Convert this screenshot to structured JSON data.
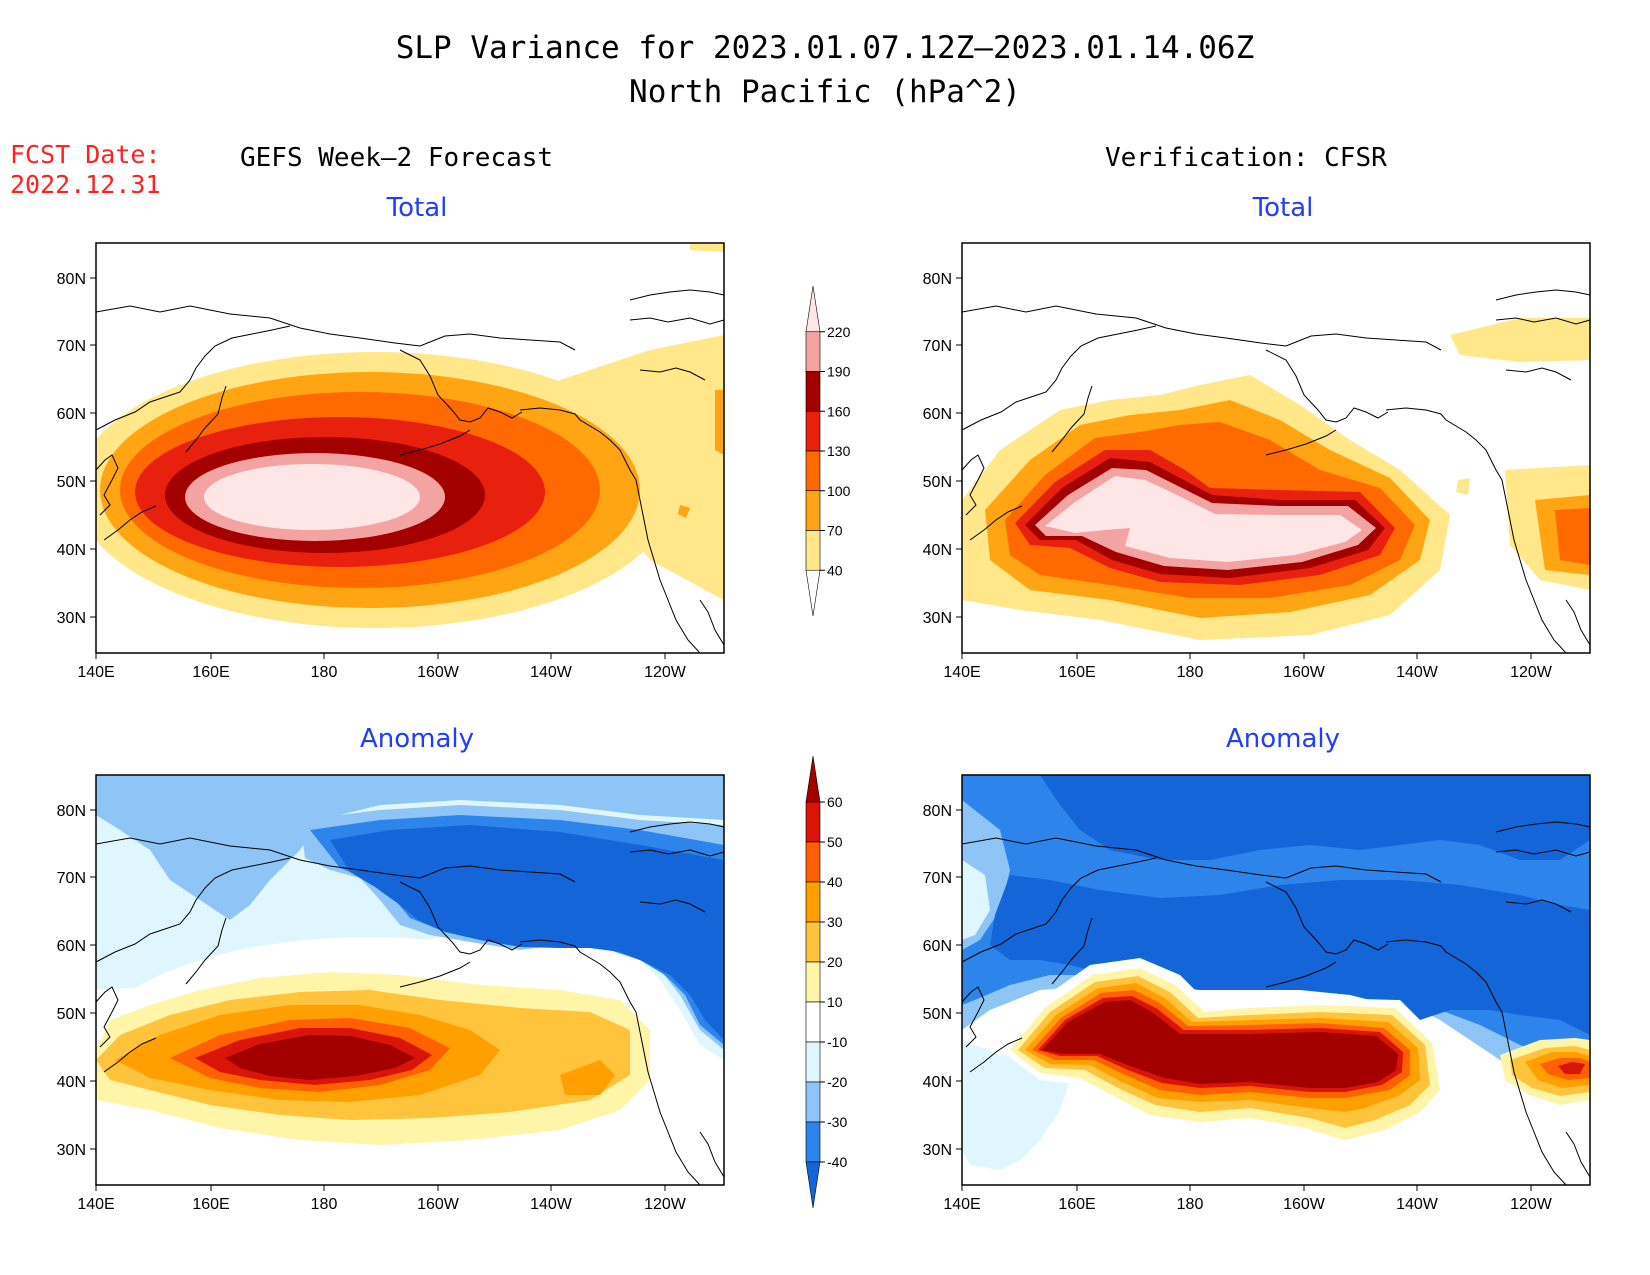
{
  "header": {
    "title_line1": "SLP Variance for 2023.01.07.12Z–2023.01.14.06Z",
    "title_line2": "North Pacific (hPa^2)",
    "fcst_label": "FCST Date:",
    "fcst_date": "2022.12.31",
    "left_column_heading": "GEFS Week–2 Forecast",
    "right_column_heading": "Verification: CFSR"
  },
  "axes": {
    "lat_ticks": [
      "80N",
      "70N",
      "60N",
      "50N",
      "40N",
      "30N"
    ],
    "lon_ticks": [
      "140E",
      "160E",
      "180",
      "160W",
      "140W",
      "120W"
    ]
  },
  "panels": [
    {
      "id": "forecast-total",
      "title": "Total"
    },
    {
      "id": "verification-total",
      "title": "Total"
    },
    {
      "id": "forecast-anomaly",
      "title": "Anomaly"
    },
    {
      "id": "verification-anomaly",
      "title": "Anomaly"
    }
  ],
  "colorbars": {
    "total": {
      "labels": [
        "40",
        "70",
        "100",
        "130",
        "160",
        "190",
        "220"
      ],
      "colors": [
        "#ffffff",
        "#ffe78a",
        "#ffa513",
        "#ff6a00",
        "#e8200e",
        "#a30000",
        "#f4a3a3",
        "#ffe6e6"
      ]
    },
    "anomaly": {
      "labels": [
        "-40",
        "-30",
        "-20",
        "-10",
        "10",
        "20",
        "30",
        "40",
        "50",
        "60"
      ],
      "colors": [
        "#1465d8",
        "#2d85ec",
        "#8fc5f6",
        "#dff6fe",
        "#ffffff",
        "#fff5a8",
        "#ffc33c",
        "#ffa000",
        "#ff6000",
        "#d91408",
        "#a30000"
      ]
    }
  },
  "chart_data": [
    {
      "type": "heatmap",
      "title": "Total",
      "column": "GEFS Week–2 Forecast",
      "lon_range": [
        "140E",
        "110W"
      ],
      "lat_range": [
        25,
        85
      ],
      "max_center": {
        "lon": "175E",
        "lat": 45,
        "category": ">220"
      },
      "colorbar_levels": [
        40,
        70,
        100,
        130,
        160,
        190,
        220
      ]
    },
    {
      "type": "heatmap",
      "title": "Total",
      "column": "Verification: CFSR",
      "lon_range": [
        "140E",
        "110W"
      ],
      "lat_range": [
        25,
        85
      ],
      "max_center": {
        "lon": "165W",
        "lat": 43,
        "category": ">220"
      },
      "colorbar_levels": [
        40,
        70,
        100,
        130,
        160,
        190,
        220
      ]
    },
    {
      "type": "heatmap",
      "title": "Anomaly",
      "column": "GEFS Week–2 Forecast",
      "lon_range": [
        "140E",
        "110W"
      ],
      "lat_range": [
        25,
        85
      ],
      "max_center": {
        "lon": "178E",
        "lat": 45,
        "category": ">60"
      },
      "colorbar_levels": [
        -40,
        -30,
        -20,
        -10,
        10,
        20,
        30,
        40,
        50,
        60
      ]
    },
    {
      "type": "heatmap",
      "title": "Anomaly",
      "column": "Verification: CFSR",
      "lon_range": [
        "140E",
        "110W"
      ],
      "lat_range": [
        25,
        85
      ],
      "max_center": {
        "lon": "165W",
        "lat": 42,
        "category": ">60"
      },
      "colorbar_levels": [
        -40,
        -30,
        -20,
        -10,
        10,
        20,
        30,
        40,
        50,
        60
      ]
    }
  ]
}
